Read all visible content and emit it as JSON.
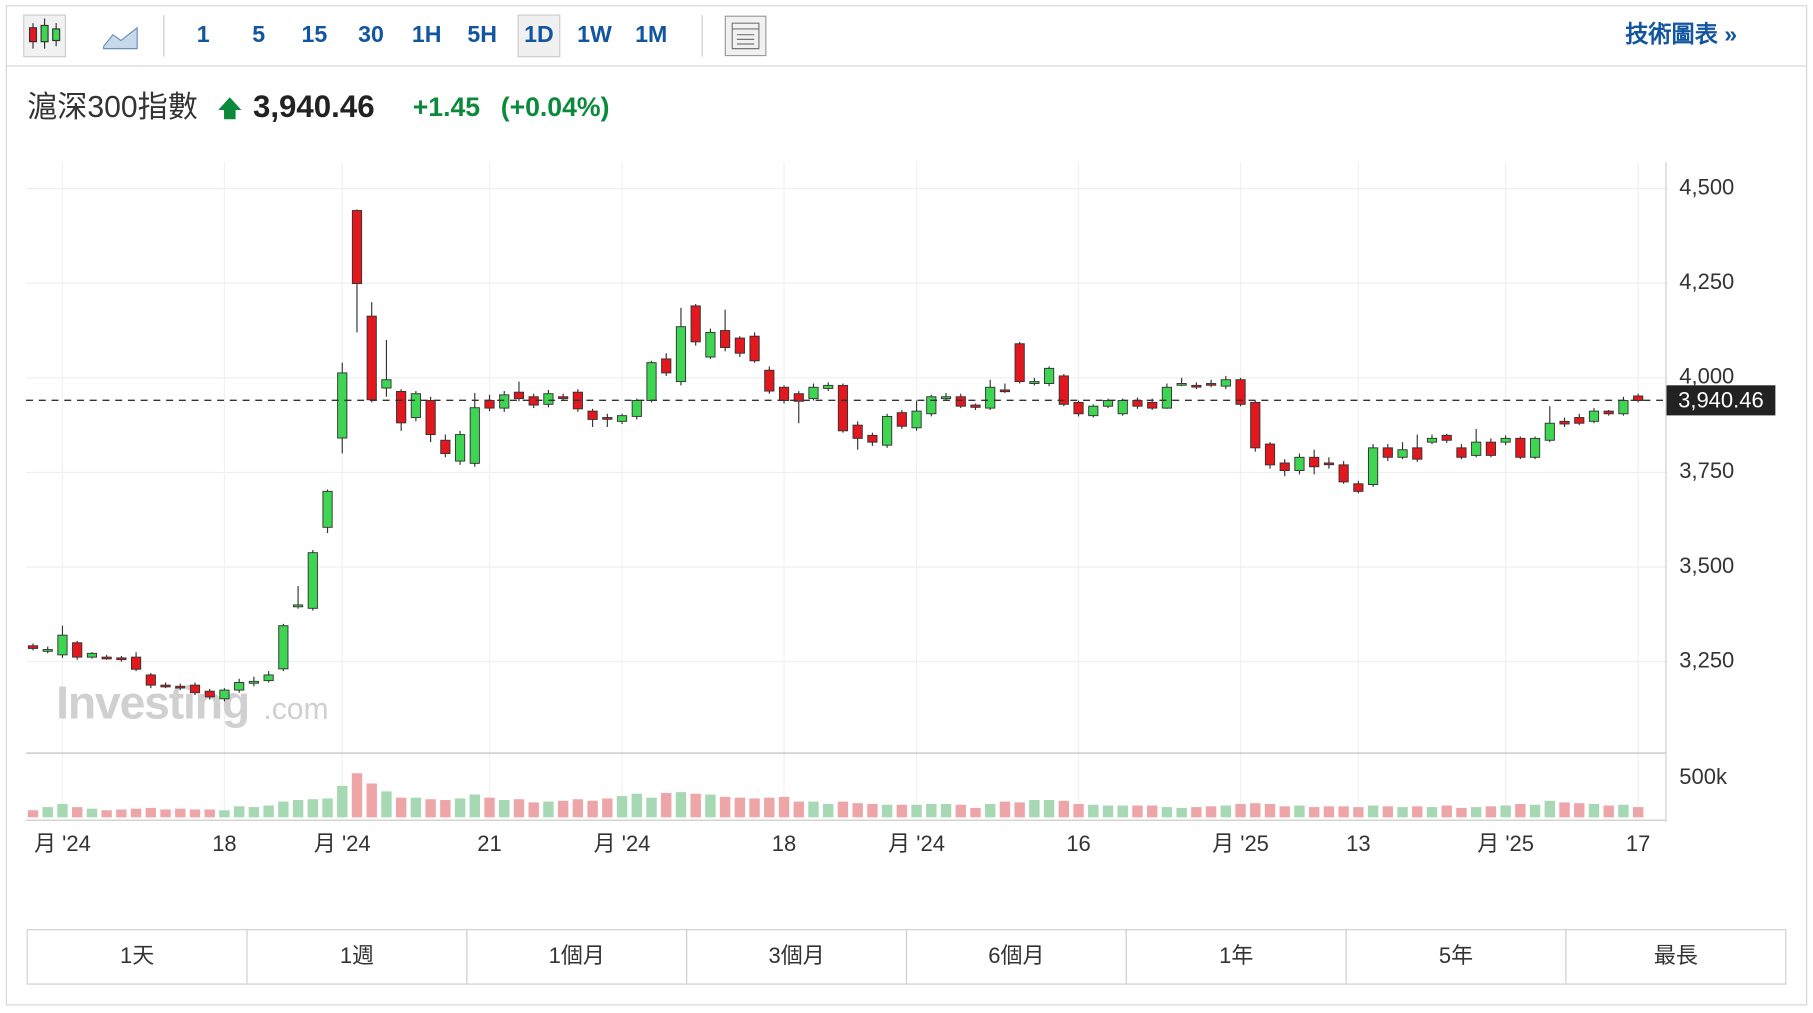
{
  "toolbar": {
    "intervals": [
      "1",
      "5",
      "15",
      "30",
      "1H",
      "5H",
      "1D",
      "1W",
      "1M"
    ],
    "active": 6,
    "tech_link": "技術圖表 »"
  },
  "header": {
    "name": "滬深300指數",
    "change": "+1.45",
    "change_pct": "(+0.04%)"
  },
  "watermark": {
    "brand": "Investing",
    "suffix": ".com"
  },
  "ranges": [
    "1天",
    "1週",
    "1個月",
    "3個月",
    "6個月",
    "1年",
    "5年",
    "最長"
  ],
  "chart_data": {
    "type": "candlestick",
    "categories": [
      null,
      null,
      "月 '24",
      null,
      null,
      null,
      null,
      null,
      null,
      null,
      null,
      null,
      null,
      "18",
      null,
      null,
      null,
      null,
      null,
      null,
      null,
      "月 '24",
      null,
      null,
      null,
      null,
      null,
      null,
      null,
      null,
      null,
      "21",
      null,
      null,
      null,
      null,
      null,
      null,
      null,
      null,
      "月 '24",
      null,
      null,
      null,
      null,
      null,
      null,
      null,
      null,
      null,
      null,
      "18",
      null,
      null,
      null,
      null,
      null,
      null,
      null,
      null,
      "月 '24",
      null,
      null,
      null,
      null,
      null,
      null,
      null,
      null,
      null,
      null,
      "16",
      null,
      null,
      null,
      null,
      null,
      null,
      null,
      null,
      null,
      null,
      "月 '25",
      null,
      null,
      null,
      null,
      null,
      null,
      null,
      "13",
      null,
      null,
      null,
      null,
      null,
      null,
      null,
      null,
      null,
      "月 '25",
      null,
      null,
      null,
      null,
      null,
      null,
      null,
      null,
      "17"
    ],
    "open": [
      3292,
      3278,
      3268,
      3300,
      3262,
      3262,
      3260,
      3262,
      3215,
      3188,
      3185,
      3188,
      3172,
      3152,
      3175,
      3193,
      3200,
      3231,
      3395,
      3391,
      3605,
      3841,
      4442,
      4163,
      3973,
      3964,
      3895,
      3940,
      3835,
      3780,
      3774,
      3940,
      3920,
      3962,
      3950,
      3930,
      3950,
      3962,
      3912,
      3895,
      3885,
      3898,
      3940,
      4050,
      3990,
      4190,
      4055,
      4125,
      4105,
      4110,
      4020,
      3975,
      3958,
      3945,
      3972,
      3980,
      3875,
      3848,
      3822,
      3908,
      3868,
      3905,
      3945,
      3950,
      3928,
      3920,
      3968,
      4090,
      3985,
      3985,
      4005,
      3935,
      3900,
      3925,
      3905,
      3940,
      3935,
      3920,
      3985,
      3980,
      3985,
      3978,
      3995,
      3935,
      3825,
      3775,
      3755,
      3790,
      3775,
      3770,
      3720,
      3718,
      3815,
      3790,
      3815,
      3830,
      3848,
      3815,
      3795,
      3830,
      3830,
      3840,
      3790,
      3835,
      3885,
      3895,
      3885,
      3912,
      3905,
      3952
    ],
    "high": [
      3298,
      3290,
      3345,
      3305,
      3275,
      3268,
      3265,
      3275,
      3220,
      3195,
      3192,
      3195,
      3178,
      3180,
      3205,
      3210,
      3225,
      3350,
      3450,
      3545,
      3705,
      4040,
      4445,
      4200,
      4100,
      3970,
      3965,
      3950,
      3850,
      3860,
      3960,
      3955,
      3965,
      3990,
      3958,
      3968,
      3958,
      3970,
      3918,
      3905,
      3905,
      3945,
      4045,
      4065,
      4185,
      4195,
      4130,
      4180,
      4110,
      4120,
      4030,
      3980,
      3965,
      3985,
      3988,
      3985,
      3885,
      3855,
      3905,
      3915,
      3940,
      3955,
      3960,
      3958,
      3932,
      3995,
      3985,
      4095,
      4000,
      4030,
      4010,
      3940,
      3930,
      3945,
      3945,
      3948,
      3945,
      3985,
      4000,
      3988,
      3995,
      4005,
      4000,
      3940,
      3830,
      3785,
      3800,
      3810,
      3790,
      3780,
      3728,
      3825,
      3825,
      3830,
      3850,
      3850,
      3852,
      3825,
      3865,
      3840,
      3848,
      3845,
      3845,
      3925,
      3895,
      3905,
      3920,
      3915,
      3950,
      3958
    ],
    "low": [
      3280,
      3272,
      3260,
      3255,
      3258,
      3255,
      3250,
      3225,
      3180,
      3180,
      3175,
      3162,
      3150,
      3145,
      3168,
      3185,
      3195,
      3225,
      3390,
      3385,
      3590,
      3800,
      4120,
      3935,
      3950,
      3860,
      3885,
      3830,
      3790,
      3770,
      3765,
      3912,
      3910,
      3938,
      3920,
      3922,
      3940,
      3910,
      3870,
      3870,
      3878,
      3890,
      3935,
      4005,
      3980,
      4085,
      4050,
      4070,
      4055,
      4040,
      3958,
      3932,
      3880,
      3940,
      3965,
      3855,
      3810,
      3820,
      3815,
      3865,
      3860,
      3898,
      3940,
      3920,
      3915,
      3915,
      3960,
      3985,
      3980,
      3978,
      3925,
      3898,
      3895,
      3920,
      3900,
      3918,
      3915,
      3918,
      3978,
      3970,
      3975,
      3970,
      3925,
      3805,
      3760,
      3740,
      3745,
      3745,
      3760,
      3720,
      3695,
      3712,
      3780,
      3785,
      3778,
      3825,
      3828,
      3785,
      3790,
      3790,
      3822,
      3785,
      3785,
      3830,
      3870,
      3875,
      3880,
      3900,
      3900,
      3935
    ],
    "close": [
      3285,
      3282,
      3320,
      3262,
      3272,
      3260,
      3256,
      3230,
      3188,
      3186,
      3182,
      3168,
      3157,
      3175,
      3195,
      3198,
      3215,
      3345,
      3400,
      3538,
      3700,
      4013,
      4249,
      3942,
      3995,
      3881,
      3958,
      3850,
      3800,
      3850,
      3921,
      3920,
      3955,
      3945,
      3928,
      3958,
      3948,
      3918,
      3890,
      3893,
      3900,
      3940,
      4040,
      4013,
      4135,
      4095,
      4120,
      4080,
      4065,
      4045,
      3965,
      3940,
      3938,
      3975,
      3980,
      3860,
      3840,
      3830,
      3898,
      3872,
      3912,
      3950,
      3950,
      3925,
      3922,
      3975,
      3966,
      3990,
      3990,
      4025,
      3930,
      3905,
      3925,
      3940,
      3940,
      3925,
      3920,
      3975,
      3985,
      3978,
      3982,
      3995,
      3930,
      3815,
      3770,
      3755,
      3790,
      3765,
      3773,
      3725,
      3700,
      3815,
      3790,
      3810,
      3785,
      3840,
      3835,
      3790,
      3830,
      3795,
      3840,
      3790,
      3840,
      3880,
      3878,
      3880,
      3912,
      3905,
      3940,
      3940
    ],
    "volume": [
      90000,
      130000,
      170000,
      130000,
      110000,
      90000,
      100000,
      110000,
      120000,
      100000,
      110000,
      100000,
      100000,
      90000,
      140000,
      130000,
      150000,
      200000,
      220000,
      230000,
      240000,
      400000,
      560000,
      430000,
      330000,
      250000,
      250000,
      230000,
      220000,
      240000,
      290000,
      250000,
      220000,
      230000,
      190000,
      200000,
      210000,
      230000,
      210000,
      240000,
      270000,
      300000,
      250000,
      310000,
      320000,
      300000,
      290000,
      260000,
      250000,
      240000,
      250000,
      260000,
      200000,
      200000,
      170000,
      200000,
      180000,
      170000,
      160000,
      160000,
      160000,
      170000,
      170000,
      160000,
      120000,
      170000,
      200000,
      190000,
      220000,
      220000,
      210000,
      170000,
      160000,
      150000,
      150000,
      150000,
      150000,
      130000,
      120000,
      130000,
      140000,
      150000,
      170000,
      180000,
      170000,
      140000,
      150000,
      130000,
      140000,
      140000,
      130000,
      150000,
      140000,
      130000,
      140000,
      130000,
      150000,
      120000,
      130000,
      140000,
      150000,
      170000,
      160000,
      210000,
      190000,
      180000,
      170000,
      150000,
      160000,
      130000
    ],
    "ylim": [
      3010,
      4570
    ],
    "yticks": [
      {
        "value": 3250,
        "label": "3,250"
      },
      {
        "value": 3500,
        "label": "3,500"
      },
      {
        "value": 3750,
        "label": "3,750"
      },
      {
        "value": 4000,
        "label": "4,000"
      },
      {
        "value": 4250,
        "label": "4,250"
      },
      {
        "value": 4500,
        "label": "4,500"
      }
    ],
    "volume_lim": [
      0,
      800000
    ],
    "volume_ticks": [
      {
        "value": 500000,
        "label": "500k"
      }
    ],
    "current_price": {
      "value": 3940.46,
      "label": "3,940.46"
    },
    "up_color": "#3dd552",
    "down_color": "#e3171e",
    "volume_up_color": "#a5d8b3",
    "volume_down_color": "#eea5a8",
    "grid": true
  }
}
